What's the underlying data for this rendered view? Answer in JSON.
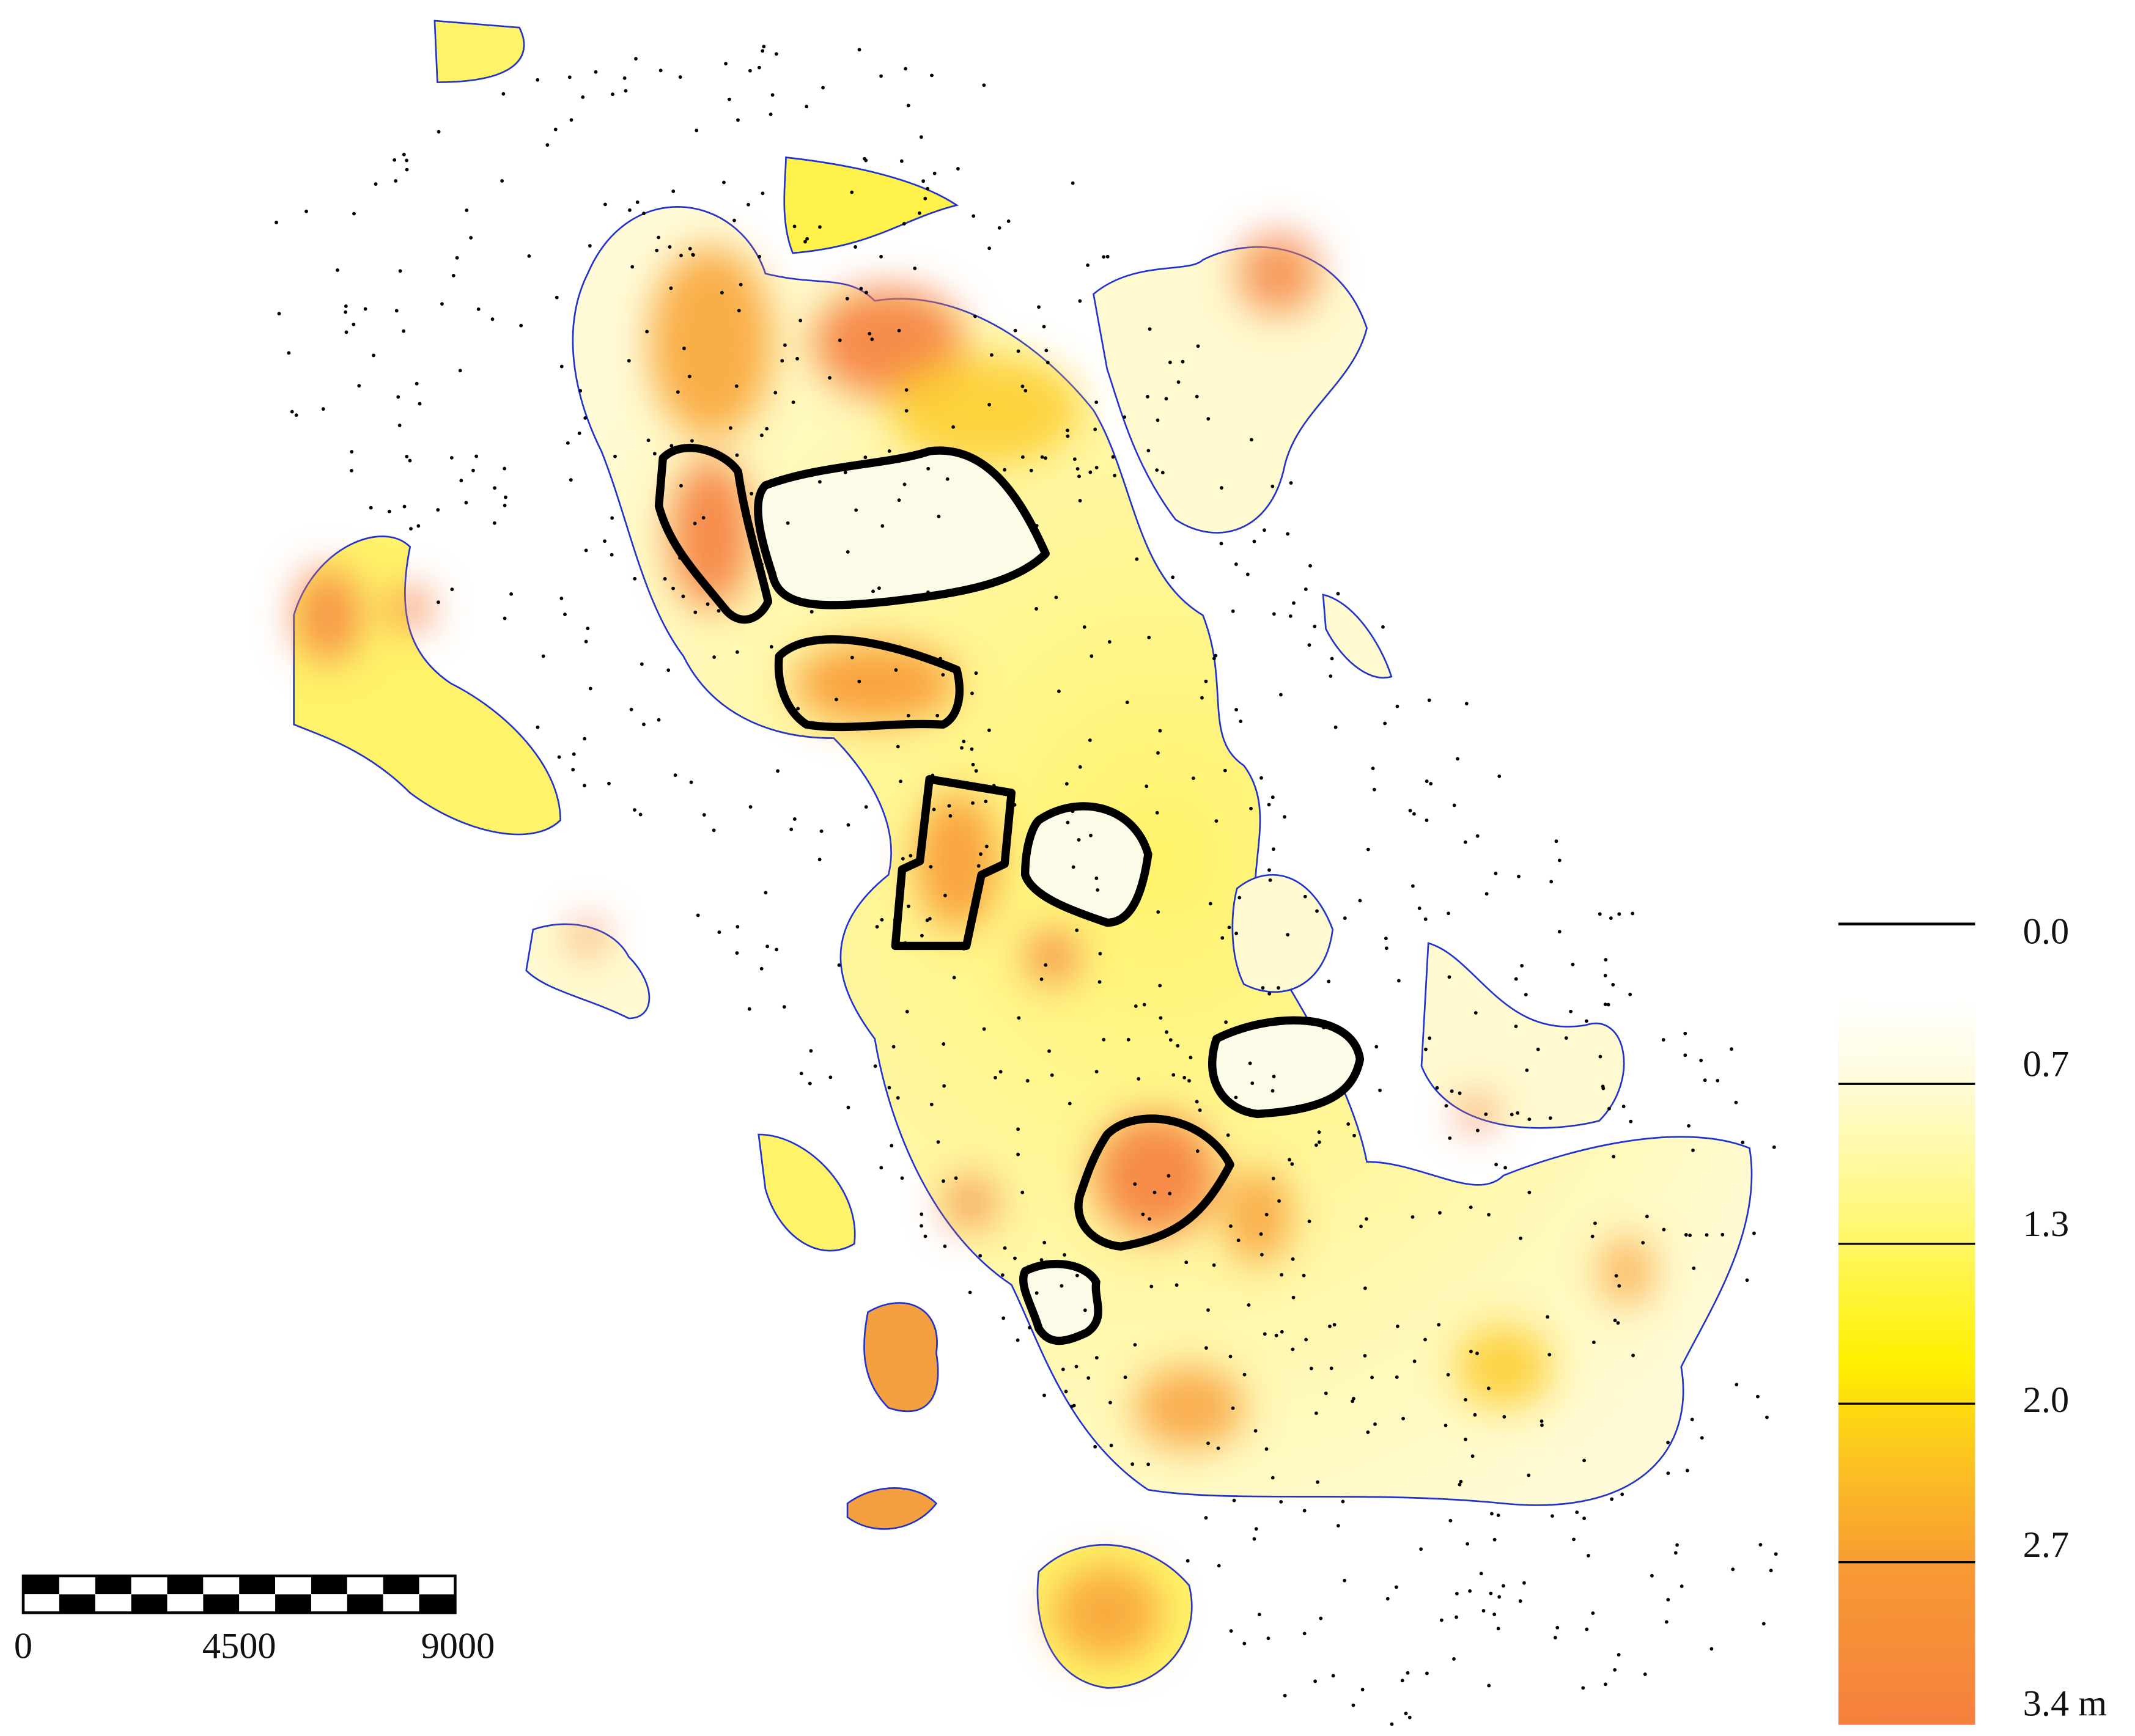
{
  "legend": {
    "labels": [
      "0.0",
      "0.7",
      "1.3",
      "2.0",
      "2.7",
      "3.4 m"
    ]
  },
  "scale_bar": {
    "labels": [
      "0",
      "4500",
      "9000"
    ]
  }
}
